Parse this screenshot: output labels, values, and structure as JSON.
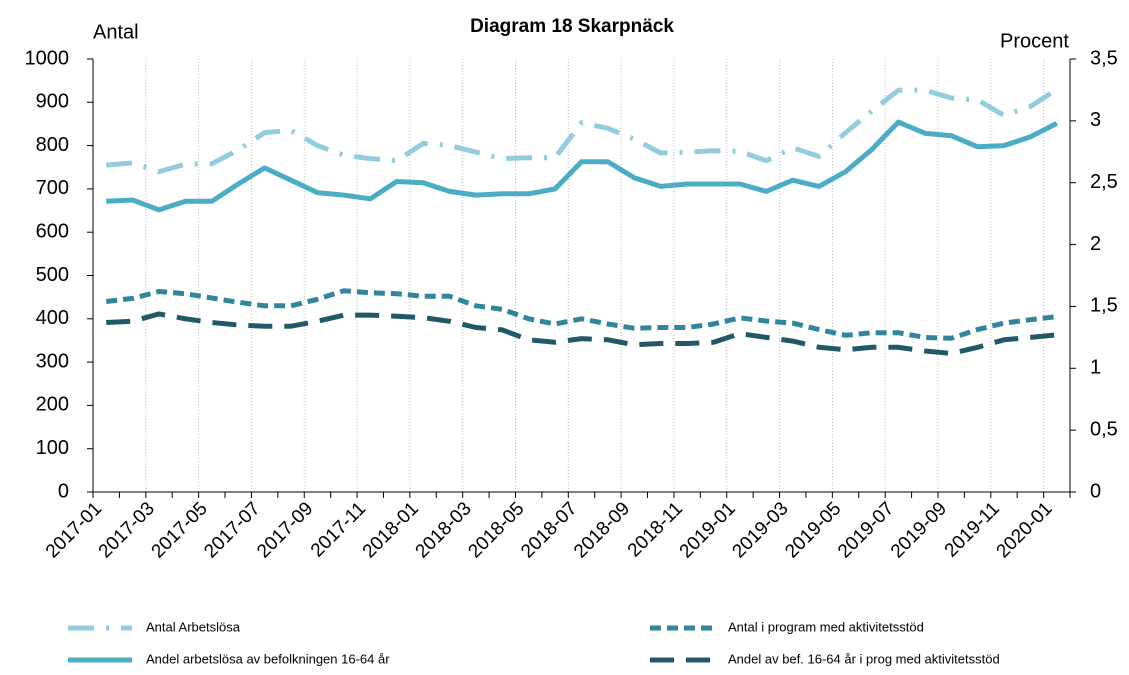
{
  "chart_data": {
    "type": "line",
    "title": "Diagram 18 Skarpnäck",
    "y_label": "Antal",
    "y2_label": "Procent",
    "categories": [
      "2017-01",
      null,
      "2017-03",
      null,
      "2017-05",
      null,
      "2017-07",
      null,
      "2017-09",
      null,
      "2017-11",
      null,
      "2018-01",
      null,
      "2018-03",
      null,
      "2018-05",
      null,
      "2018-07",
      null,
      "2018-09",
      null,
      "2018-11",
      null,
      "2019-01",
      null,
      "2019-03",
      null,
      "2019-05",
      null,
      "2019-07",
      null,
      "2019-09",
      null,
      "2019-11",
      null,
      "2020-01"
    ],
    "ylim": [
      0,
      1000
    ],
    "yticks": [
      0,
      100,
      200,
      300,
      400,
      500,
      600,
      700,
      800,
      900,
      1000
    ],
    "y2lim": [
      0,
      3.5
    ],
    "y2ticks": [
      0,
      {
        "value": 0.5,
        "label": "0,5"
      },
      1,
      {
        "value": 1.5,
        "label": "1,5"
      },
      2,
      {
        "value": 2.5,
        "label": "2,5"
      },
      3,
      {
        "value": 3.5,
        "label": "3,5"
      }
    ],
    "grid": true,
    "legend": "bottom",
    "series": [
      {
        "name": "Antal Arbetslösa",
        "color": "#93cddd",
        "dash": "dashdot",
        "axis": "y",
        "values": [
          755,
          760,
          740,
          757,
          758,
          790,
          830,
          835,
          800,
          778,
          770,
          765,
          805,
          800,
          785,
          770,
          772,
          772,
          853,
          840,
          815,
          783,
          785,
          788,
          787,
          765,
          795,
          775,
          830,
          880,
          928,
          928,
          910,
          905,
          870,
          890,
          930
        ]
      },
      {
        "name": "Antal i program med aktivitetsstöd",
        "color": "#31859c",
        "dash": "dash",
        "axis": "y",
        "values": [
          440,
          447,
          463,
          458,
          448,
          438,
          430,
          430,
          445,
          465,
          460,
          458,
          452,
          452,
          430,
          422,
          400,
          388,
          400,
          388,
          378,
          380,
          380,
          388,
          402,
          395,
          390,
          375,
          362,
          368,
          368,
          357,
          355,
          375,
          390,
          398,
          405
        ]
      },
      {
        "name": "Andel arbetslösa av befolkningen 16-64 år",
        "color": "#4bacc6",
        "dash": "solid",
        "axis": "y2",
        "values": [
          2.35,
          2.36,
          2.28,
          2.35,
          2.35,
          2.49,
          2.62,
          2.52,
          2.42,
          2.4,
          2.37,
          2.51,
          2.5,
          2.43,
          2.4,
          2.41,
          2.41,
          2.45,
          2.67,
          2.67,
          2.54,
          2.47,
          2.49,
          2.49,
          2.49,
          2.43,
          2.52,
          2.47,
          2.59,
          2.77,
          2.99,
          2.9,
          2.88,
          2.79,
          2.8,
          2.87,
          2.98
        ]
      },
      {
        "name": "Andel av bef. 16-64 år i prog med aktivitetsstöd",
        "color": "#215968",
        "dash": "longdash",
        "axis": "y2",
        "values": [
          1.37,
          1.38,
          1.44,
          1.4,
          1.37,
          1.35,
          1.34,
          1.34,
          1.38,
          1.43,
          1.43,
          1.42,
          1.41,
          1.38,
          1.33,
          1.31,
          1.23,
          1.21,
          1.24,
          1.23,
          1.19,
          1.2,
          1.2,
          1.21,
          1.28,
          1.25,
          1.22,
          1.17,
          1.15,
          1.17,
          1.17,
          1.14,
          1.12,
          1.17,
          1.23,
          1.25,
          1.27
        ]
      }
    ]
  }
}
